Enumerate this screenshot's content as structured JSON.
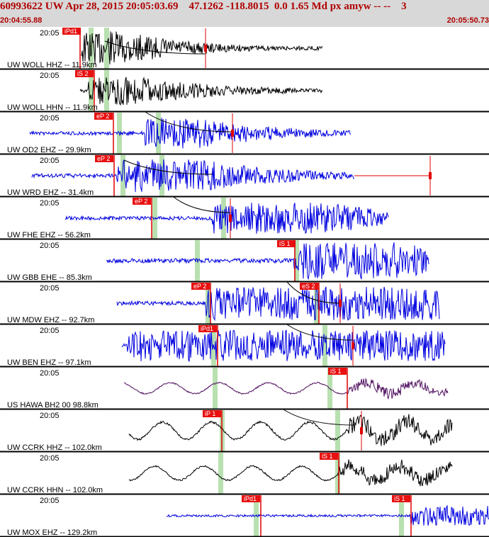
{
  "header": {
    "title": "60993622 UW Apr 28, 2015 20:05:03.69    47.1262 -118.8015  0.0 1.65 Md px amyw -- --    3",
    "start_time": "20:04:55.88",
    "end_time": "20:05:50.73"
  },
  "colors": {
    "blue": "#0000e0",
    "black": "#000000",
    "red": "#e00000",
    "pick_bg": "#e81010",
    "green": "#b8e0b0",
    "purple": "#501060"
  },
  "panels": [
    {
      "label": "UW WOLL HHZ -- 11.9km",
      "color": "black",
      "time": "20:05",
      "picks": [
        {
          "label": "iPd1"
        }
      ],
      "pick_kind": "d"
    },
    {
      "label": "UW WOLL HHN -- 11.9km",
      "color": "black",
      "time": "20:05",
      "picks": [
        {
          "label": "iS 2"
        }
      ]
    },
    {
      "label": "UW OD2 EHZ -- 29.9km",
      "color": "blue",
      "time": "20:05",
      "picks": [
        {
          "label": "eP 2"
        }
      ]
    },
    {
      "label": "UW WRD EHZ -- 31.4km",
      "color": "blue",
      "time": "20:05",
      "picks": [
        {
          "label": "eP 2"
        }
      ]
    },
    {
      "label": "UW FHE EHZ -- 56.2km",
      "color": "blue",
      "time": "20:05",
      "picks": [
        {
          "label": "eP 2"
        }
      ]
    },
    {
      "label": "UW GBB EHE -- 85.3km",
      "color": "blue",
      "time": "20:05",
      "picks": [
        {
          "label": "iS 1"
        }
      ]
    },
    {
      "label": "UW MDW EHZ -- 92.7km",
      "color": "blue",
      "time": "20:05",
      "picks": [
        {
          "label": "eP 2"
        },
        {
          "label": "eS 2"
        }
      ]
    },
    {
      "label": "UW BEN EHZ -- 97.1km",
      "color": "blue",
      "time": "20:05",
      "picks": [
        {
          "label": "iPd1"
        }
      ]
    },
    {
      "label": "US HAWA BH2 00 98.8km",
      "color": "purple",
      "time": "20:05",
      "picks": [
        {
          "label": "iS 1"
        }
      ]
    },
    {
      "label": "UW CCRK HHZ -- 102.0km",
      "color": "black",
      "time": "20:05",
      "picks": [
        {
          "label": "iP 1"
        }
      ]
    },
    {
      "label": "UW CCRK HHN -- 102.0km",
      "color": "black",
      "time": "20:05",
      "picks": [
        {
          "label": "iS 1"
        }
      ]
    },
    {
      "label": "UW MOX EHZ -- 129.2km",
      "color": "blue",
      "time": "20:05",
      "picks": [
        {
          "label": "iPd1"
        },
        {
          "label": "iS 1"
        }
      ]
    }
  ]
}
